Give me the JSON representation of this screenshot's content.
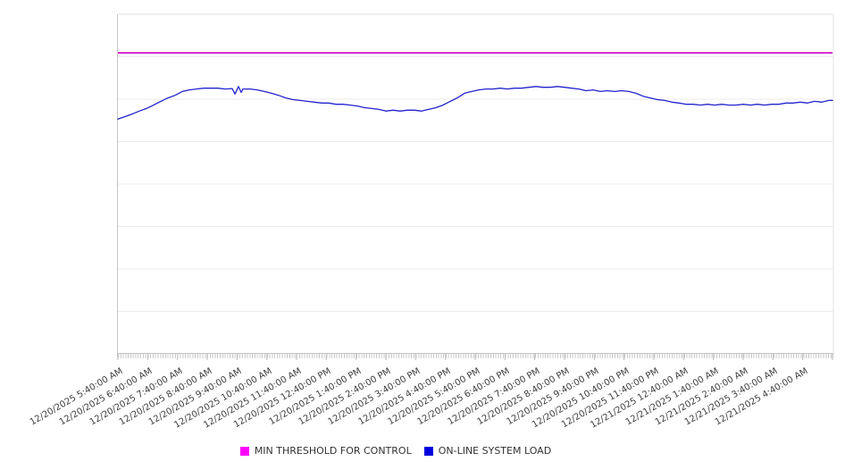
{
  "legend": {
    "items": [
      {
        "label": "MIN THRESHOLD FOR CONTROL",
        "color": "#ff00ff"
      },
      {
        "label": "ON-LINE SYSTEM LOAD",
        "color": "#0000dd"
      }
    ],
    "position": "bottom-center"
  },
  "chart_data": {
    "type": "line",
    "title": "",
    "xlabel": "",
    "ylabel": "",
    "grid": "horizontal gridlines on, 8 divisions, no y-axis tick labels visible",
    "y_tick_labels": [],
    "ylim": [
      0,
      8
    ],
    "x_unit": "hours since 12/20/2025 5:40:00 AM",
    "xlim_hours": [
      0,
      24
    ],
    "x_minor_ticks": "dense minor ticks every ~5 minutes along bottom axis",
    "categories": [
      "12/20/2025 5:40:00 AM",
      "12/20/2025 6:40:00 AM",
      "12/20/2025 7:40:00 AM",
      "12/20/2025 8:40:00 AM",
      "12/20/2025 9:40:00 AM",
      "12/20/2025 10:40:00 AM",
      "12/20/2025 11:40:00 AM",
      "12/20/2025 12:40:00 PM",
      "12/20/2025 1:40:00 PM",
      "12/20/2025 2:40:00 PM",
      "12/20/2025 3:40:00 PM",
      "12/20/2025 4:40:00 PM",
      "12/20/2025 5:40:00 PM",
      "12/20/2025 6:40:00 PM",
      "12/20/2025 7:40:00 PM",
      "12/20/2025 8:40:00 PM",
      "12/20/2025 9:40:00 PM",
      "12/20/2025 10:40:00 PM",
      "12/20/2025 11:40:00 PM",
      "12/21/2025 12:40:00 AM",
      "12/21/2025 1:40:00 AM",
      "12/21/2025 2:40:00 AM",
      "12/21/2025 3:40:00 AM",
      "12/21/2025 4:40:00 AM"
    ],
    "series": [
      {
        "name": "MIN THRESHOLD FOR CONTROL",
        "kind": "horizontal-threshold",
        "color": "#cc00cc",
        "value": 7.09
      },
      {
        "name": "ON-LINE SYSTEM LOAD",
        "kind": "line",
        "color": "#2222cc",
        "points": [
          [
            0.0,
            5.53
          ],
          [
            0.24,
            5.59
          ],
          [
            0.48,
            5.65
          ],
          [
            0.72,
            5.72
          ],
          [
            0.96,
            5.78
          ],
          [
            1.2,
            5.86
          ],
          [
            1.44,
            5.95
          ],
          [
            1.68,
            6.03
          ],
          [
            1.92,
            6.09
          ],
          [
            2.16,
            6.18
          ],
          [
            2.4,
            6.22
          ],
          [
            2.64,
            6.24
          ],
          [
            2.88,
            6.26
          ],
          [
            3.12,
            6.26
          ],
          [
            3.36,
            6.26
          ],
          [
            3.6,
            6.24
          ],
          [
            3.84,
            6.25
          ],
          [
            3.93,
            6.12
          ],
          [
            4.05,
            6.3
          ],
          [
            4.14,
            6.16
          ],
          [
            4.2,
            6.24
          ],
          [
            4.44,
            6.24
          ],
          [
            4.68,
            6.22
          ],
          [
            4.92,
            6.18
          ],
          [
            5.16,
            6.14
          ],
          [
            5.4,
            6.09
          ],
          [
            5.64,
            6.03
          ],
          [
            5.88,
            5.99
          ],
          [
            6.12,
            5.97
          ],
          [
            6.36,
            5.95
          ],
          [
            6.6,
            5.93
          ],
          [
            6.84,
            5.91
          ],
          [
            7.08,
            5.91
          ],
          [
            7.32,
            5.88
          ],
          [
            7.56,
            5.88
          ],
          [
            7.8,
            5.86
          ],
          [
            8.04,
            5.84
          ],
          [
            8.28,
            5.8
          ],
          [
            8.52,
            5.78
          ],
          [
            8.76,
            5.76
          ],
          [
            9.0,
            5.72
          ],
          [
            9.24,
            5.74
          ],
          [
            9.48,
            5.72
          ],
          [
            9.72,
            5.74
          ],
          [
            9.96,
            5.74
          ],
          [
            10.2,
            5.72
          ],
          [
            10.44,
            5.76
          ],
          [
            10.68,
            5.8
          ],
          [
            10.92,
            5.86
          ],
          [
            11.16,
            5.95
          ],
          [
            11.4,
            6.03
          ],
          [
            11.64,
            6.14
          ],
          [
            11.88,
            6.18
          ],
          [
            12.12,
            6.22
          ],
          [
            12.36,
            6.24
          ],
          [
            12.6,
            6.24
          ],
          [
            12.84,
            6.26
          ],
          [
            13.08,
            6.24
          ],
          [
            13.32,
            6.26
          ],
          [
            13.56,
            6.26
          ],
          [
            13.8,
            6.28
          ],
          [
            14.04,
            6.3
          ],
          [
            14.28,
            6.28
          ],
          [
            14.52,
            6.28
          ],
          [
            14.76,
            6.3
          ],
          [
            15.0,
            6.28
          ],
          [
            15.24,
            6.26
          ],
          [
            15.48,
            6.24
          ],
          [
            15.72,
            6.2
          ],
          [
            15.96,
            6.22
          ],
          [
            16.2,
            6.18
          ],
          [
            16.44,
            6.2
          ],
          [
            16.68,
            6.18
          ],
          [
            16.92,
            6.2
          ],
          [
            17.16,
            6.18
          ],
          [
            17.4,
            6.14
          ],
          [
            17.64,
            6.07
          ],
          [
            17.88,
            6.03
          ],
          [
            18.12,
            5.99
          ],
          [
            18.36,
            5.97
          ],
          [
            18.6,
            5.93
          ],
          [
            18.84,
            5.91
          ],
          [
            19.08,
            5.88
          ],
          [
            19.32,
            5.88
          ],
          [
            19.56,
            5.86
          ],
          [
            19.8,
            5.88
          ],
          [
            20.04,
            5.86
          ],
          [
            20.28,
            5.88
          ],
          [
            20.52,
            5.86
          ],
          [
            20.76,
            5.86
          ],
          [
            21.0,
            5.88
          ],
          [
            21.24,
            5.86
          ],
          [
            21.48,
            5.88
          ],
          [
            21.72,
            5.86
          ],
          [
            21.96,
            5.88
          ],
          [
            22.2,
            5.88
          ],
          [
            22.44,
            5.91
          ],
          [
            22.68,
            5.91
          ],
          [
            22.92,
            5.93
          ],
          [
            23.16,
            5.91
          ],
          [
            23.4,
            5.95
          ],
          [
            23.64,
            5.93
          ],
          [
            23.88,
            5.97
          ],
          [
            24.0,
            5.97
          ]
        ]
      }
    ],
    "legend_entries": [
      "MIN THRESHOLD FOR CONTROL",
      "ON-LINE SYSTEM LOAD"
    ]
  }
}
